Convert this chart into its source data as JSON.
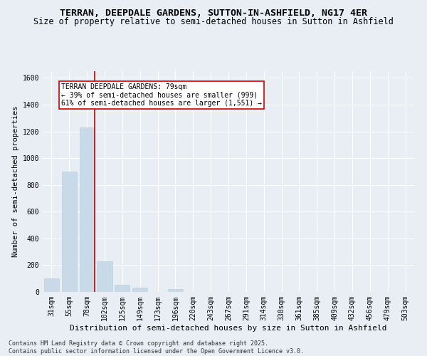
{
  "title1": "TERRAN, DEEPDALE GARDENS, SUTTON-IN-ASHFIELD, NG17 4ER",
  "title2": "Size of property relative to semi-detached houses in Sutton in Ashfield",
  "xlabel": "Distribution of semi-detached houses by size in Sutton in Ashfield",
  "ylabel": "Number of semi-detached properties",
  "categories": [
    "31sqm",
    "55sqm",
    "78sqm",
    "102sqm",
    "125sqm",
    "149sqm",
    "173sqm",
    "196sqm",
    "220sqm",
    "243sqm",
    "267sqm",
    "291sqm",
    "314sqm",
    "338sqm",
    "361sqm",
    "385sqm",
    "409sqm",
    "432sqm",
    "456sqm",
    "479sqm",
    "503sqm"
  ],
  "values": [
    100,
    900,
    1230,
    230,
    55,
    30,
    0,
    20,
    0,
    0,
    0,
    0,
    0,
    0,
    0,
    0,
    0,
    0,
    0,
    0,
    0
  ],
  "bar_color": "#c9d9e8",
  "bar_edge_color": "#b8cfe0",
  "vline_color": "#cc0000",
  "annotation_title": "TERRAN DEEPDALE GARDENS: 79sqm",
  "annotation_line1": "← 39% of semi-detached houses are smaller (999)",
  "annotation_line2": "61% of semi-detached houses are larger (1,551) →",
  "annotation_box_color": "#ffffff",
  "annotation_box_edge": "#cc0000",
  "ylim": [
    0,
    1650
  ],
  "yticks": [
    0,
    200,
    400,
    600,
    800,
    1000,
    1200,
    1400,
    1600
  ],
  "bg_color": "#e8eef4",
  "plot_bg_color": "#e8eef4",
  "footer": "Contains HM Land Registry data © Crown copyright and database right 2025.\nContains public sector information licensed under the Open Government Licence v3.0.",
  "title1_fontsize": 9.5,
  "title2_fontsize": 8.5,
  "xlabel_fontsize": 8,
  "ylabel_fontsize": 7.5,
  "tick_fontsize": 7,
  "annot_fontsize": 7,
  "footer_fontsize": 6
}
